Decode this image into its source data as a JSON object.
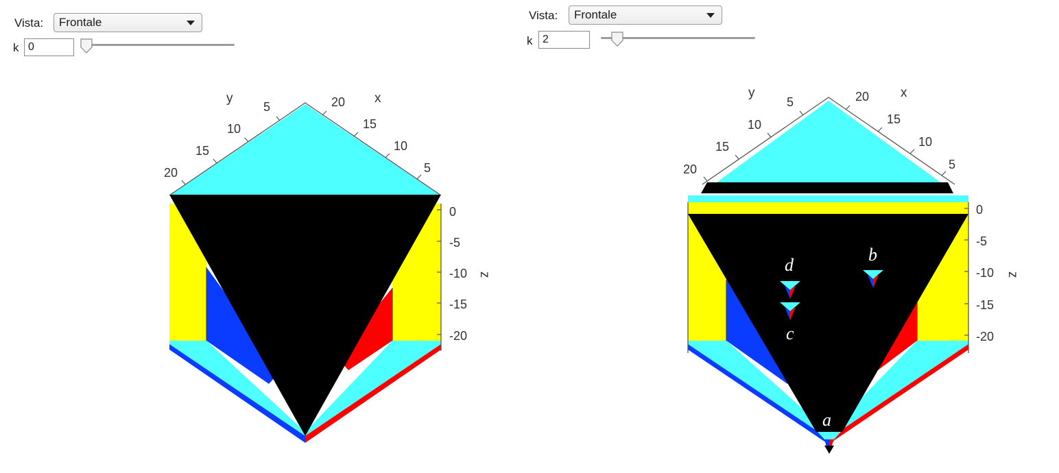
{
  "left": {
    "vista_label": "Vista:",
    "vista_value": "Frontale",
    "k_label": "k",
    "k_value": "0",
    "slider_fraction": 0.0,
    "axes": {
      "x_label": "x",
      "y_label": "y",
      "z_label": "z",
      "x_ticks": [
        "20",
        "15",
        "10",
        "5"
      ],
      "y_ticks": [
        "5",
        "10",
        "15",
        "20"
      ],
      "z_ticks": [
        "0",
        "-5",
        "-10",
        "-15",
        "-20"
      ]
    }
  },
  "right": {
    "vista_label": "Vista:",
    "vista_value": "Frontale",
    "k_label": "k",
    "k_value": "2",
    "slider_fraction": 0.1,
    "axes": {
      "x_label": "x",
      "y_label": "y",
      "z_label": "z",
      "x_ticks": [
        "20",
        "15",
        "10",
        "5"
      ],
      "y_ticks": [
        "5",
        "10",
        "15",
        "20"
      ],
      "z_ticks": [
        "0",
        "-5",
        "-10",
        "-15",
        "-20"
      ]
    },
    "annotations": [
      "a",
      "b",
      "c",
      "d"
    ]
  },
  "colors": {
    "cyan": "#4dffff",
    "yellow": "#ffff00",
    "blue": "#0a3cff",
    "red": "#ff0000",
    "black": "#000000"
  }
}
